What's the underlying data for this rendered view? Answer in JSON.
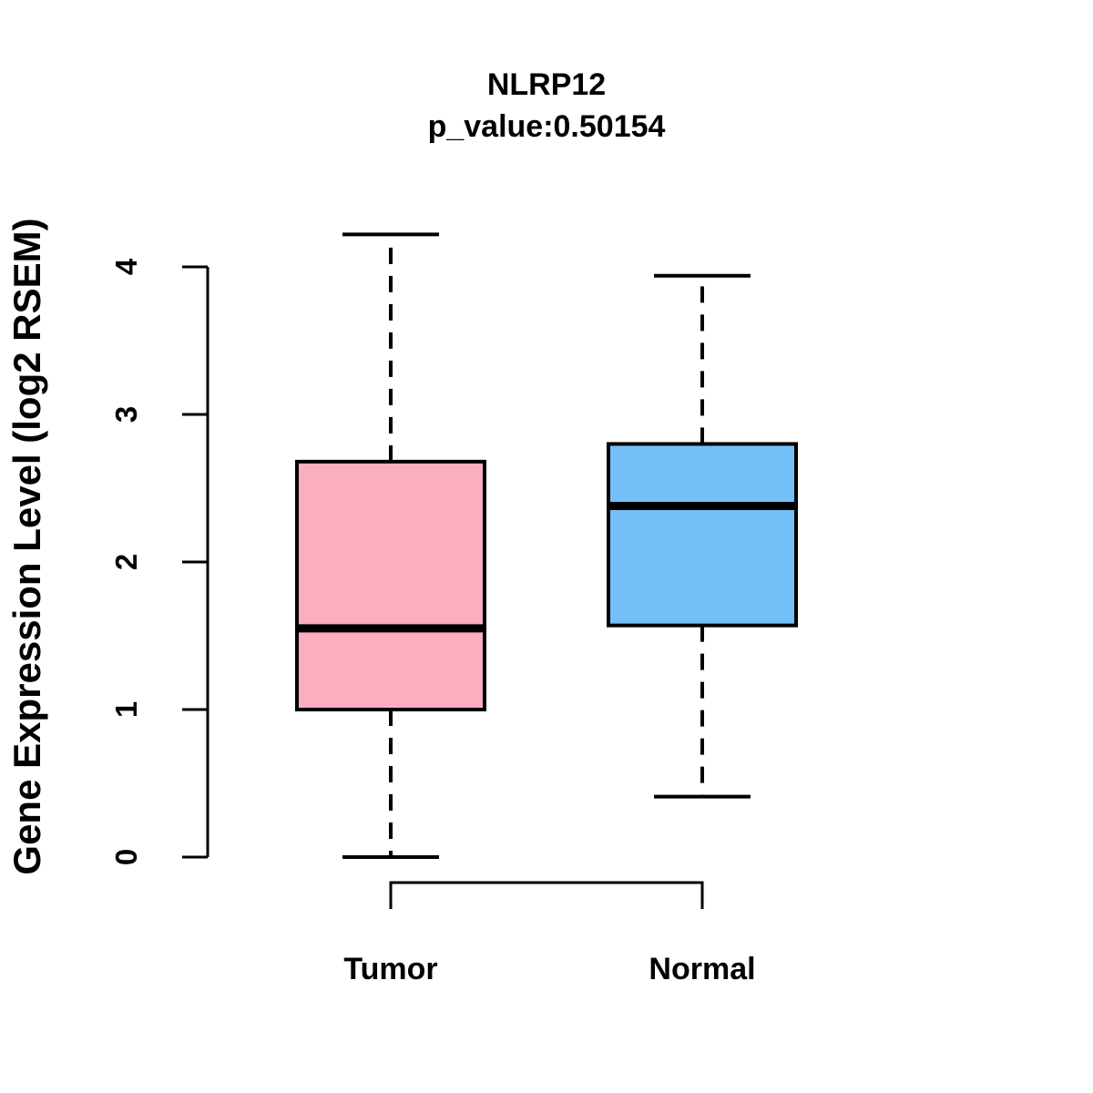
{
  "title": {
    "line1": "NLRP12",
    "line2": "p_value:0.50154"
  },
  "y_axis": {
    "label": "Gene Expression Level (log2 RSEM)",
    "tick_labels": [
      "0",
      "1",
      "2",
      "3",
      "4"
    ],
    "tick_values": [
      0,
      1,
      2,
      3,
      4
    ]
  },
  "x_axis": {
    "categories": [
      "Tumor",
      "Normal"
    ]
  },
  "colors": {
    "tumor_fill": "#FCAEC1",
    "normal_fill": "#74BFF7",
    "stroke": "#000000",
    "background": "#FFFFFF"
  },
  "chart_data": {
    "type": "boxplot",
    "title": "NLRP12",
    "subtitle": "p_value:0.50154",
    "gene": "NLRP12",
    "p_value": 0.50154,
    "ylabel": "Gene Expression Level (log2 RSEM)",
    "xlabel": "",
    "ylim": [
      0,
      4
    ],
    "y_ticks": [
      0,
      1,
      2,
      3,
      4
    ],
    "grid": false,
    "legend": "none",
    "categories": [
      "Tumor",
      "Normal"
    ],
    "series": [
      {
        "name": "Tumor",
        "color": "#FCAEC1",
        "whisker_low": 0.0,
        "q1": 1.0,
        "median": 1.55,
        "q3": 2.68,
        "whisker_high": 4.22
      },
      {
        "name": "Normal",
        "color": "#74BFF7",
        "whisker_low": 0.41,
        "q1": 1.57,
        "median": 2.38,
        "q3": 2.8,
        "whisker_high": 3.94
      }
    ]
  }
}
